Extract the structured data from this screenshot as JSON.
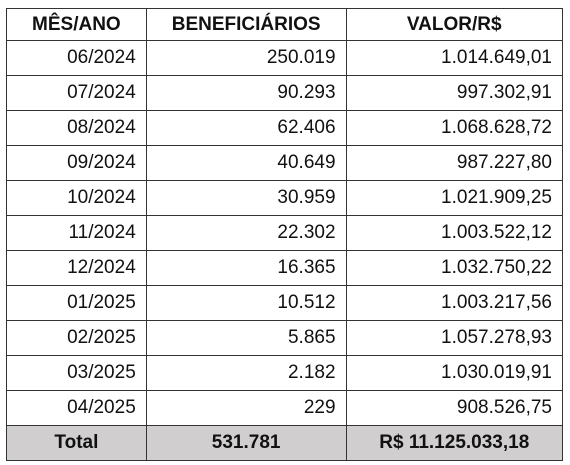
{
  "table": {
    "header": [
      "MÊS/ANO",
      "BENEFICIÁRIOS",
      "VALOR/R$"
    ],
    "rows": [
      [
        "06/2024",
        "250.019",
        "1.014.649,01"
      ],
      [
        "07/2024",
        "90.293",
        "997.302,91"
      ],
      [
        "08/2024",
        "62.406",
        "1.068.628,72"
      ],
      [
        "09/2024",
        "40.649",
        "987.227,80"
      ],
      [
        "10/2024",
        "30.959",
        "1.021.909,25"
      ],
      [
        "11/2024",
        "22.302",
        "1.003.522,12"
      ],
      [
        "12/2024",
        "16.365",
        "1.032.750,22"
      ],
      [
        "01/2025",
        "10.512",
        "1.003.217,56"
      ],
      [
        "02/2025",
        "5.865",
        "1.057.278,93"
      ],
      [
        "03/2025",
        "2.182",
        "1.030.019,91"
      ],
      [
        "04/2025",
        "229",
        "908.526,75"
      ]
    ],
    "total": [
      "Total",
      "531.781",
      "R$ 11.125.033,18"
    ]
  }
}
